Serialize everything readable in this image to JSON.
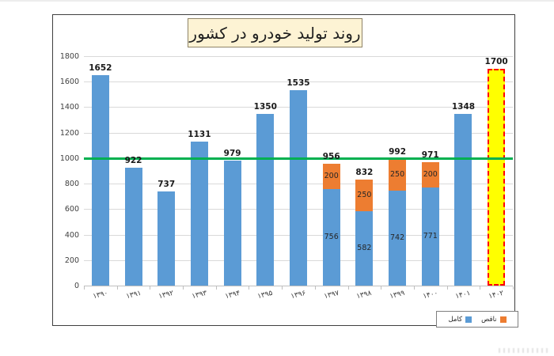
{
  "title": "روند تولید خودرو در کشور",
  "legend": {
    "complete_label": "کامل",
    "incomplete_label": "ناقص"
  },
  "colors": {
    "complete": "#5b9bd5",
    "incomplete": "#ed7d31",
    "reference_line": "#00b050",
    "highlight_fill": "#ffff00",
    "highlight_border": "#ff0000",
    "gridline": "#d9d9d9",
    "title_box_fill": "#fdf3d4"
  },
  "chart_data": {
    "type": "bar",
    "title": "روند تولید خودرو در کشور",
    "categories": [
      "۱۳۹۰",
      "۱۳۹۱",
      "۱۳۹۲",
      "۱۳۹۳",
      "۱۳۹۴",
      "۱۳۹۵",
      "۱۳۹۶",
      "۱۳۹۷",
      "۱۳۹۸",
      "۱۳۹۹",
      "۱۴۰۰",
      "۱۴۰۱",
      "۱۴۰۲"
    ],
    "categories_western": [
      1390,
      1391,
      1392,
      1393,
      1394,
      1395,
      1396,
      1397,
      1398,
      1399,
      1400,
      1401,
      1402
    ],
    "series": [
      {
        "name": "کامل",
        "color": "#5b9bd5",
        "values": [
          1652,
          922,
          737,
          1131,
          979,
          1350,
          1535,
          756,
          582,
          742,
          771,
          1348,
          null
        ]
      },
      {
        "name": "ناقص",
        "color": "#ed7d31",
        "values": [
          null,
          null,
          null,
          null,
          null,
          null,
          null,
          200,
          250,
          250,
          200,
          null,
          null
        ]
      }
    ],
    "totals": [
      1652,
      922,
      737,
      1131,
      979,
      1350,
      1535,
      956,
      832,
      992,
      971,
      1348,
      1700
    ],
    "highlight": {
      "category": "۱۴۰۲",
      "value": 1700,
      "style": "yellow-red-dashed"
    },
    "reference_line": {
      "value": 1000
    },
    "ylim": [
      0,
      1800
    ],
    "yticks": [
      0,
      200,
      400,
      600,
      800,
      1000,
      1200,
      1400,
      1600,
      1800
    ],
    "grid": true,
    "legend_position": "bottom-right"
  },
  "bars": [
    {
      "year": "۱۳۹۰",
      "complete": 1652,
      "incomplete": null,
      "total": 1652,
      "highlight": false
    },
    {
      "year": "۱۳۹۱",
      "complete": 922,
      "incomplete": null,
      "total": 922,
      "highlight": false
    },
    {
      "year": "۱۳۹۲",
      "complete": 737,
      "incomplete": null,
      "total": 737,
      "highlight": false
    },
    {
      "year": "۱۳۹۳",
      "complete": 1131,
      "incomplete": null,
      "total": 1131,
      "highlight": false
    },
    {
      "year": "۱۳۹۴",
      "complete": 979,
      "incomplete": null,
      "total": 979,
      "highlight": false
    },
    {
      "year": "۱۳۹۵",
      "complete": 1350,
      "incomplete": null,
      "total": 1350,
      "highlight": false
    },
    {
      "year": "۱۳۹۶",
      "complete": 1535,
      "incomplete": null,
      "total": 1535,
      "highlight": false
    },
    {
      "year": "۱۳۹۷",
      "complete": 756,
      "incomplete": 200,
      "total": 956,
      "highlight": false
    },
    {
      "year": "۱۳۹۸",
      "complete": 582,
      "incomplete": 250,
      "total": 832,
      "highlight": false
    },
    {
      "year": "۱۳۹۹",
      "complete": 742,
      "incomplete": 250,
      "total": 992,
      "highlight": false
    },
    {
      "year": "۱۴۰۰",
      "complete": 771,
      "incomplete": 200,
      "total": 971,
      "highlight": false
    },
    {
      "year": "۱۴۰۱",
      "complete": 1348,
      "incomplete": null,
      "total": 1348,
      "highlight": false
    },
    {
      "year": "۱۴۰۲",
      "complete": null,
      "incomplete": null,
      "total": 1700,
      "highlight": true
    }
  ]
}
